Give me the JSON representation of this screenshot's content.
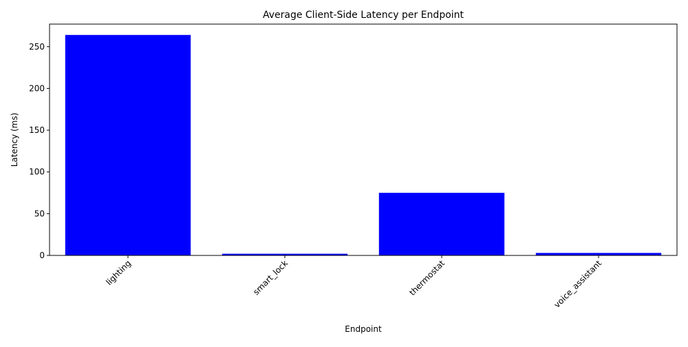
{
  "chart_data": {
    "type": "bar",
    "title": "Average Client-Side Latency per Endpoint",
    "xlabel": "Endpoint",
    "ylabel": "Latency (ms)",
    "categories": [
      "lighting",
      "smart_lock",
      "thermostat",
      "voice_assistant"
    ],
    "values": [
      264,
      2,
      75,
      3
    ],
    "ylim": [
      0,
      277
    ],
    "yticks": [
      0,
      50,
      100,
      150,
      200,
      250
    ],
    "bar_color": "#0000ff",
    "x_tick_rotation": "45 degrees",
    "grid": false,
    "legend": "none"
  }
}
